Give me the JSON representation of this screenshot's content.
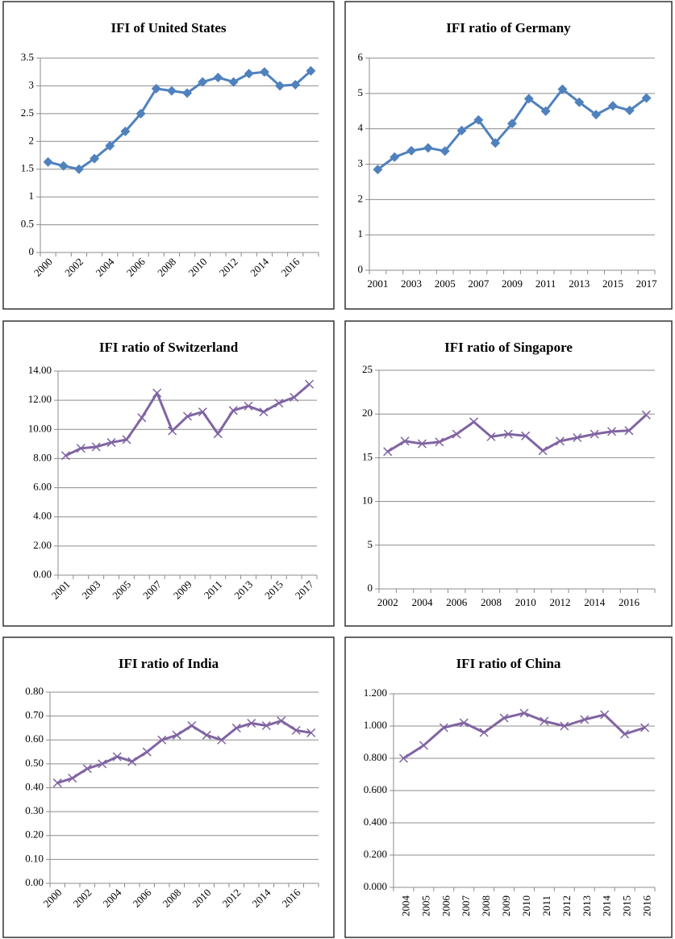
{
  "chart_data": [
    {
      "type": "line",
      "title": "IFI of United States",
      "marker": "diamond",
      "color": "#4f81bd",
      "categories": [
        "2000",
        null,
        "2002",
        null,
        "2004",
        null,
        "2006",
        null,
        "2008",
        null,
        "2010",
        null,
        "2012",
        null,
        "2014",
        null,
        "2016",
        null
      ],
      "series": [
        {
          "name": "IFI",
          "color": "#4f81bd",
          "values": [
            1.63,
            1.56,
            1.5,
            1.69,
            1.92,
            2.18,
            2.5,
            2.95,
            2.91,
            2.87,
            3.07,
            3.15,
            3.07,
            3.22,
            3.25,
            3.0,
            3.02,
            3.27
          ]
        }
      ],
      "ylim": [
        0,
        3.5
      ],
      "yticks": [
        0,
        0.5,
        1,
        1.5,
        2,
        2.5,
        3,
        3.5
      ],
      "grid": true
    },
    {
      "type": "line",
      "title": "IFI ratio of Germany",
      "marker": "diamond",
      "color": "#4f81bd",
      "categories": [
        "2001",
        null,
        "2003",
        null,
        "2005",
        null,
        "2007",
        null,
        "2009",
        null,
        "2011",
        null,
        "2013",
        null,
        "2015",
        null,
        "2017"
      ],
      "series": [
        {
          "name": "IFI ratio",
          "color": "#4f81bd",
          "values": [
            2.85,
            3.2,
            3.38,
            3.46,
            3.37,
            3.95,
            4.25,
            3.6,
            4.15,
            4.85,
            4.5,
            5.12,
            4.75,
            4.4,
            4.65,
            4.52,
            4.87
          ]
        }
      ],
      "ylim": [
        0,
        6
      ],
      "yticks": [
        0,
        1,
        2,
        3,
        4,
        5,
        6
      ],
      "grid": true
    },
    {
      "type": "line",
      "title": "IFI ratio of Switzerland",
      "marker": "x",
      "color": "#8064a2",
      "categories": [
        "2001",
        null,
        "2003",
        null,
        "2005",
        null,
        "2007",
        null,
        "2009",
        null,
        "2011",
        null,
        "2013",
        null,
        "2015",
        null,
        "2017"
      ],
      "series": [
        {
          "name": "IFI ratio",
          "color": "#8064a2",
          "values": [
            8.2,
            8.7,
            8.8,
            9.1,
            9.3,
            10.8,
            12.5,
            9.9,
            10.9,
            11.2,
            9.7,
            11.3,
            11.6,
            11.2,
            11.8,
            12.2,
            13.1
          ]
        }
      ],
      "ylim": [
        0,
        14
      ],
      "yticks": [
        {
          "value": 0,
          "label": "0.00"
        },
        {
          "value": 2,
          "label": "2.00"
        },
        {
          "value": 4,
          "label": "4.00"
        },
        {
          "value": 6,
          "label": "6.00"
        },
        {
          "value": 8,
          "label": "8.00"
        },
        {
          "value": 10,
          "label": "10.00"
        },
        {
          "value": 12,
          "label": "12.00"
        },
        {
          "value": 14,
          "label": "14.00"
        }
      ],
      "grid": true
    },
    {
      "type": "line",
      "title": "IFI ratio of Singapore",
      "marker": "x",
      "color": "#8064a2",
      "categories": [
        "2002",
        null,
        "2004",
        null,
        "2006",
        null,
        "2008",
        null,
        "2010",
        null,
        "2012",
        null,
        "2014",
        null,
        "2016",
        null
      ],
      "series": [
        {
          "name": "IFI ratio",
          "color": "#8064a2",
          "values": [
            15.7,
            16.9,
            16.6,
            16.8,
            17.7,
            19.1,
            17.4,
            17.7,
            17.5,
            15.8,
            16.9,
            17.3,
            17.7,
            18.0,
            18.1,
            19.9
          ]
        }
      ],
      "ylim": [
        0,
        25
      ],
      "yticks": [
        0,
        5,
        10,
        15,
        20,
        25
      ],
      "grid": true
    },
    {
      "type": "line",
      "title": "IFI ratio of India",
      "marker": "x",
      "color": "#8064a2",
      "categories": [
        "2000",
        null,
        "2002",
        null,
        "2004",
        null,
        "2006",
        null,
        "2008",
        null,
        "2010",
        null,
        "2012",
        null,
        "2014",
        null,
        "2016",
        null
      ],
      "series": [
        {
          "name": "IFI ratio",
          "color": "#8064a2",
          "values": [
            0.42,
            0.44,
            0.48,
            0.5,
            0.53,
            0.51,
            0.55,
            0.6,
            0.62,
            0.66,
            0.62,
            0.6,
            0.65,
            0.67,
            0.66,
            0.68,
            0.64,
            0.63
          ]
        }
      ],
      "ylim": [
        0,
        0.8
      ],
      "yticks": [
        {
          "value": 0,
          "label": "0.00"
        },
        {
          "value": 0.1,
          "label": "0.10"
        },
        {
          "value": 0.2,
          "label": "0.20"
        },
        {
          "value": 0.3,
          "label": "0.30"
        },
        {
          "value": 0.4,
          "label": "0.40"
        },
        {
          "value": 0.5,
          "label": "0.50"
        },
        {
          "value": 0.6,
          "label": "0.60"
        },
        {
          "value": 0.7,
          "label": "0.70"
        },
        {
          "value": 0.8,
          "label": "0.80"
        }
      ],
      "grid": true
    },
    {
      "type": "line",
      "title": "IFI ratio of China",
      "marker": "x",
      "color": "#8064a2",
      "categories": [
        "2004",
        "2005",
        "2006",
        "2007",
        "2008",
        "2009",
        "2010",
        "2011",
        "2012",
        "2013",
        "2014",
        "2015",
        "2016"
      ],
      "series": [
        {
          "name": "IFI ratio",
          "color": "#8064a2",
          "values": [
            0.8,
            0.88,
            0.99,
            1.02,
            0.96,
            1.05,
            1.08,
            1.03,
            1.0,
            1.04,
            1.07,
            0.95,
            0.99
          ]
        }
      ],
      "ylim": [
        0,
        1.2
      ],
      "yticks": [
        {
          "value": 0,
          "label": "0.000"
        },
        {
          "value": 0.2,
          "label": "0.200"
        },
        {
          "value": 0.4,
          "label": "0.400"
        },
        {
          "value": 0.6,
          "label": "0.600"
        },
        {
          "value": 0.8,
          "label": "0.800"
        },
        {
          "value": 1.0,
          "label": "1.000"
        },
        {
          "value": 1.2,
          "label": "1.200"
        }
      ],
      "grid": true
    }
  ]
}
